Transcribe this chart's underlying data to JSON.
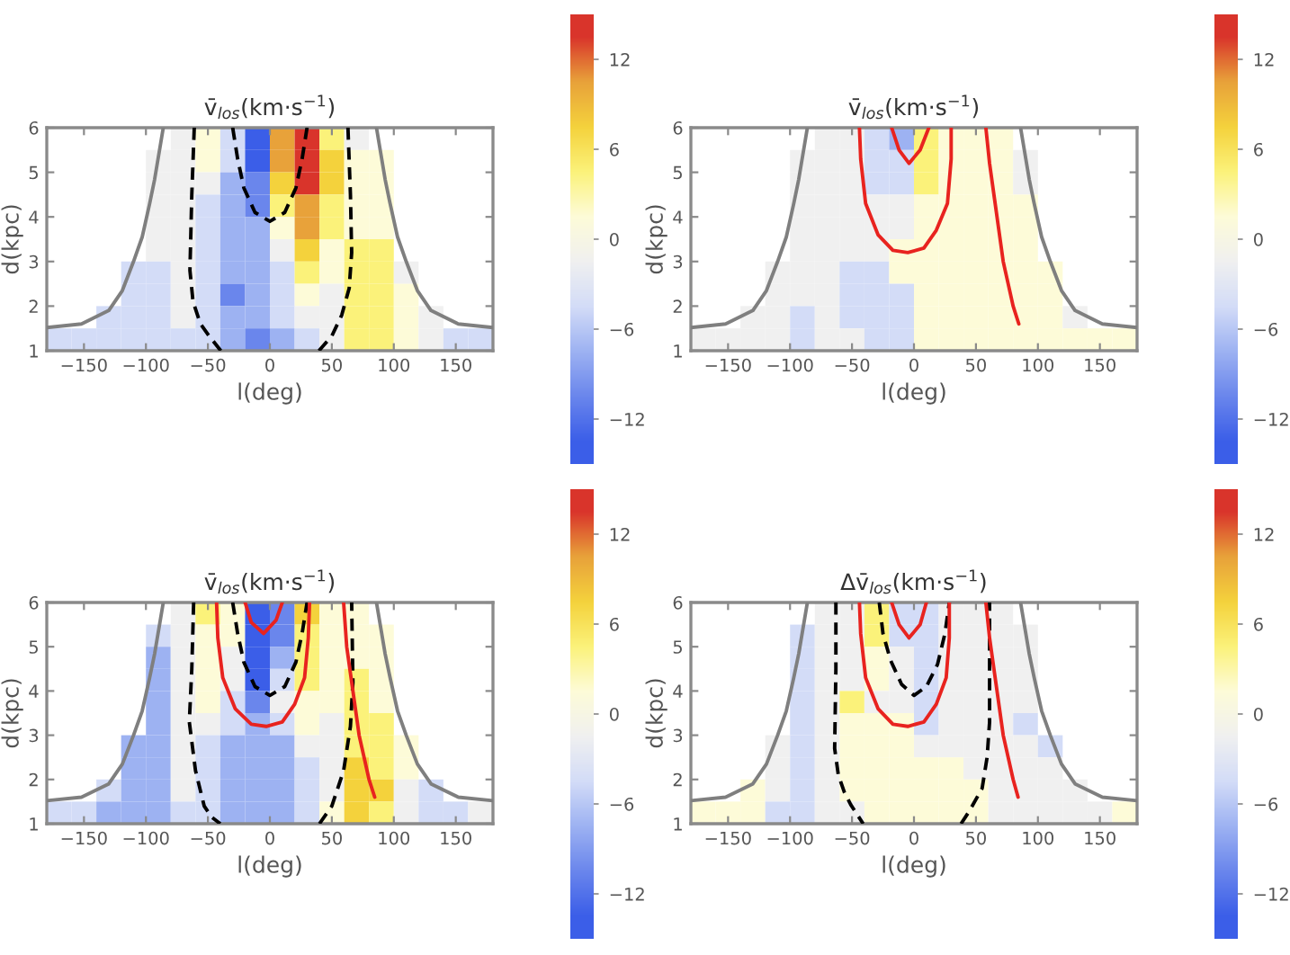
{
  "chart_data": [
    {
      "type": "heatmap",
      "title": "v̄$_{los}$(km·s$^{−1}$)",
      "xlabel": "l(deg)",
      "ylabel": "d(kpc)",
      "xlim": [
        -180,
        180
      ],
      "xticks": [
        {
          "value": -150,
          "label": "−150"
        },
        {
          "value": -100,
          "label": "−100"
        },
        {
          "value": -50,
          "label": "−50"
        },
        0,
        50,
        100,
        150
      ],
      "ylim": [
        1,
        6
      ],
      "yticks": [
        1,
        2,
        3,
        4,
        5,
        6
      ],
      "clim": [
        -15,
        15
      ],
      "cticks": [
        -12,
        -6,
        0,
        6,
        12
      ],
      "colors": [
        "#3b5ee8",
        "#6a86ec",
        "#9db2f2",
        "#d3dcf7",
        "#f0f0f0",
        "#fdfbd8",
        "#fbf27a",
        "#f4d23c",
        "#e8a23a",
        "#d9342b"
      ],
      "cells": [
        [
          null,
          null,
          null,
          null,
          null,
          -1.5,
          1.5,
          -4.5,
          -13.5,
          10.5,
          13.5,
          4.5,
          -1.5,
          null,
          null,
          null,
          null,
          null
        ],
        [
          null,
          null,
          null,
          null,
          -1.5,
          -1.5,
          1.5,
          -4.5,
          -13.5,
          10.5,
          13.5,
          7.5,
          1.5,
          1.5,
          null,
          null,
          null,
          null
        ],
        [
          null,
          null,
          null,
          null,
          -1.5,
          -1.5,
          -1.5,
          -7.5,
          -10.5,
          7.5,
          13.5,
          7.5,
          1.5,
          1.5,
          null,
          null,
          null,
          null
        ],
        [
          null,
          null,
          null,
          null,
          -1.5,
          -1.5,
          -4.5,
          -7.5,
          -10.5,
          4.5,
          10.5,
          4.5,
          1.5,
          1.5,
          null,
          null,
          null,
          null
        ],
        [
          null,
          null,
          null,
          null,
          -1.5,
          -1.5,
          -4.5,
          -7.5,
          -7.5,
          1.5,
          10.5,
          4.5,
          1.5,
          1.5,
          null,
          null,
          null,
          null
        ],
        [
          null,
          null,
          null,
          null,
          -1.5,
          -1.5,
          -4.5,
          -7.5,
          -7.5,
          -1.5,
          7.5,
          1.5,
          4.5,
          4.5,
          null,
          null,
          null,
          null
        ],
        [
          null,
          null,
          null,
          -4.5,
          -4.5,
          -1.5,
          -4.5,
          -7.5,
          -7.5,
          -4.5,
          4.5,
          1.5,
          4.5,
          4.5,
          -1.5,
          null,
          null,
          null
        ],
        [
          null,
          null,
          null,
          -4.5,
          -4.5,
          -1.5,
          -4.5,
          -10.5,
          -7.5,
          -4.5,
          1.5,
          -1.5,
          4.5,
          4.5,
          1.5,
          null,
          null,
          null
        ],
        [
          null,
          null,
          -4.5,
          -4.5,
          -4.5,
          -1.5,
          -4.5,
          -7.5,
          -7.5,
          -4.5,
          -1.5,
          -1.5,
          4.5,
          4.5,
          1.5,
          -1.5,
          null,
          null
        ],
        [
          -4.5,
          -4.5,
          -4.5,
          -4.5,
          -4.5,
          -4.5,
          -4.5,
          -7.5,
          -10.5,
          -7.5,
          -4.5,
          -1.5,
          4.5,
          4.5,
          1.5,
          -1.5,
          -4.5,
          -4.5
        ]
      ],
      "series": [
        {
          "type": "line",
          "color": "#7f7f7f",
          "line_style": "solid",
          "x": [
            -180,
            -152,
            -130,
            -119,
            -110,
            -103,
            -97,
            -93,
            -86
          ],
          "values": [
            1.52,
            1.6,
            1.9,
            2.35,
            3.0,
            3.55,
            4.3,
            4.84,
            6.0
          ]
        },
        {
          "type": "line",
          "color": "#7f7f7f",
          "line_style": "solid",
          "x": [
            86,
            93,
            97,
            103,
            110,
            119,
            130,
            152,
            180
          ],
          "values": [
            6.0,
            4.84,
            4.3,
            3.55,
            3.0,
            2.35,
            1.9,
            1.6,
            1.52
          ]
        },
        {
          "type": "line",
          "color": "#000000",
          "line_style": "dashed",
          "x": [
            -61,
            -63,
            -64.5,
            -62,
            -56,
            -49,
            -39.6
          ],
          "values": [
            6.0,
            4.5,
            2.8,
            2.1,
            1.6,
            1.33,
            1.0
          ]
        },
        {
          "type": "line",
          "color": "#000000",
          "line_style": "dashed",
          "x": [
            39.6,
            50,
            58,
            64,
            66,
            65,
            63
          ],
          "values": [
            1.0,
            1.33,
            1.8,
            2.4,
            3.2,
            4.5,
            6.0
          ]
        },
        {
          "type": "line",
          "color": "#000000",
          "line_style": "dashed",
          "x": [
            -30,
            -26,
            -21,
            -12,
            0,
            12,
            21,
            26,
            30
          ],
          "values": [
            6.0,
            5.3,
            4.65,
            4.1,
            3.9,
            4.1,
            4.65,
            5.3,
            6.0
          ]
        }
      ]
    },
    {
      "type": "heatmap",
      "title": "v̄$_{los}$(km·s$^{−1}$)",
      "xlabel": "l(deg)",
      "ylabel": "d(kpc)",
      "xlim": [
        -180,
        180
      ],
      "xticks": [
        {
          "value": -150,
          "label": "−150"
        },
        {
          "value": -100,
          "label": "−100"
        },
        {
          "value": -50,
          "label": "−50"
        },
        0,
        50,
        100,
        150
      ],
      "ylim": [
        1,
        6
      ],
      "yticks": [
        1,
        2,
        3,
        4,
        5,
        6
      ],
      "clim": [
        -15,
        15
      ],
      "cticks": [
        -12,
        -6,
        0,
        6,
        12
      ],
      "colors": [
        "#3b5ee8",
        "#6a86ec",
        "#9db2f2",
        "#d3dcf7",
        "#f0f0f0",
        "#fdfbd8",
        "#fbf27a",
        "#f4d23c",
        "#e8a23a",
        "#d9342b"
      ],
      "cells": [
        [
          null,
          null,
          null,
          null,
          null,
          -1.5,
          -1.5,
          -4.5,
          -7.5,
          4.5,
          1.5,
          1.5,
          1.5,
          null,
          null,
          null,
          null,
          null
        ],
        [
          null,
          null,
          null,
          null,
          -1.5,
          -1.5,
          -1.5,
          -4.5,
          -4.5,
          4.5,
          1.5,
          1.5,
          1.5,
          -1.5,
          null,
          null,
          null,
          null
        ],
        [
          null,
          null,
          null,
          null,
          -1.5,
          -1.5,
          -1.5,
          -4.5,
          -4.5,
          4.5,
          1.5,
          1.5,
          1.5,
          -1.5,
          null,
          null,
          null,
          null
        ],
        [
          null,
          null,
          null,
          null,
          -1.5,
          -1.5,
          -1.5,
          -1.5,
          -1.5,
          1.5,
          1.5,
          1.5,
          1.5,
          1.5,
          null,
          null,
          null,
          null
        ],
        [
          null,
          null,
          null,
          null,
          -1.5,
          -1.5,
          -1.5,
          -1.5,
          -1.5,
          1.5,
          1.5,
          1.5,
          1.5,
          1.5,
          null,
          null,
          null,
          null
        ],
        [
          null,
          null,
          null,
          null,
          -1.5,
          -1.5,
          -1.5,
          -1.5,
          1.5,
          1.5,
          1.5,
          1.5,
          1.5,
          1.5,
          null,
          null,
          null,
          null
        ],
        [
          null,
          null,
          null,
          -1.5,
          -1.5,
          -1.5,
          -4.5,
          -4.5,
          1.5,
          1.5,
          1.5,
          1.5,
          1.5,
          1.5,
          1.5,
          null,
          null,
          null
        ],
        [
          null,
          null,
          null,
          -1.5,
          -1.5,
          -1.5,
          -4.5,
          -4.5,
          -4.5,
          1.5,
          1.5,
          1.5,
          1.5,
          1.5,
          1.5,
          null,
          null,
          null
        ],
        [
          null,
          null,
          -1.5,
          -1.5,
          -4.5,
          -1.5,
          -4.5,
          -4.5,
          -4.5,
          1.5,
          1.5,
          1.5,
          1.5,
          1.5,
          1.5,
          -1.5,
          null,
          null
        ],
        [
          -1.5,
          -1.5,
          -1.5,
          -1.5,
          -4.5,
          -1.5,
          -1.5,
          -4.5,
          -4.5,
          1.5,
          1.5,
          1.5,
          1.5,
          1.5,
          1.5,
          1.5,
          1.5,
          1.5
        ]
      ],
      "series": [
        {
          "type": "line",
          "color": "#7f7f7f",
          "line_style": "solid",
          "x": [
            -180,
            -152,
            -130,
            -119,
            -110,
            -103,
            -97,
            -93,
            -86
          ],
          "values": [
            1.52,
            1.6,
            1.9,
            2.35,
            3.0,
            3.55,
            4.3,
            4.84,
            6.0
          ]
        },
        {
          "type": "line",
          "color": "#7f7f7f",
          "line_style": "solid",
          "x": [
            86,
            93,
            97,
            103,
            110,
            119,
            130,
            152,
            180
          ],
          "values": [
            6.0,
            4.84,
            4.3,
            3.55,
            3.0,
            2.35,
            1.9,
            1.6,
            1.52
          ]
        },
        {
          "type": "line",
          "color": "#e8231f",
          "line_style": "solid",
          "x": [
            -44,
            -43,
            -39,
            -29,
            -17,
            -5,
            8,
            18,
            27,
            30,
            30
          ],
          "values": [
            6.0,
            5.3,
            4.3,
            3.6,
            3.25,
            3.2,
            3.3,
            3.7,
            4.3,
            5.3,
            6.0
          ]
        },
        {
          "type": "line",
          "color": "#e8231f",
          "line_style": "solid",
          "x": [
            -18,
            -12,
            -4,
            5,
            12
          ],
          "values": [
            6.0,
            5.5,
            5.2,
            5.5,
            6.0
          ]
        },
        {
          "type": "line",
          "color": "#e8231f",
          "line_style": "solid",
          "x": [
            58,
            61,
            65,
            72,
            80,
            84.6
          ],
          "values": [
            6.0,
            5.2,
            4.4,
            3.0,
            2.0,
            1.6
          ]
        }
      ]
    },
    {
      "type": "heatmap",
      "title": "v̄$_{los}$(km·s$^{−1}$)",
      "xlabel": "l(deg)",
      "ylabel": "d(kpc)",
      "xlim": [
        -180,
        180
      ],
      "xticks": [
        {
          "value": -150,
          "label": "−150"
        },
        {
          "value": -100,
          "label": "−100"
        },
        {
          "value": -50,
          "label": "−50"
        },
        0,
        50,
        100,
        150
      ],
      "ylim": [
        1,
        6
      ],
      "yticks": [
        1,
        2,
        3,
        4,
        5,
        6
      ],
      "clim": [
        -15,
        15
      ],
      "cticks": [
        -12,
        -6,
        0,
        6,
        12
      ],
      "colors": [
        "#3b5ee8",
        "#6a86ec",
        "#9db2f2",
        "#d3dcf7",
        "#f0f0f0",
        "#fdfbd8",
        "#fbf27a",
        "#f4d23c",
        "#e8a23a",
        "#d9342b"
      ],
      "cells": [
        [
          null,
          null,
          null,
          null,
          null,
          -1.5,
          4.5,
          1.5,
          -13.5,
          -10.5,
          7.5,
          1.5,
          1.5,
          null,
          null,
          null,
          null,
          null
        ],
        [
          null,
          null,
          null,
          null,
          -4.5,
          -1.5,
          1.5,
          1.5,
          -13.5,
          -10.5,
          4.5,
          1.5,
          1.5,
          1.5,
          null,
          null,
          null,
          null
        ],
        [
          null,
          null,
          null,
          null,
          -7.5,
          -1.5,
          1.5,
          -1.5,
          -13.5,
          -7.5,
          4.5,
          1.5,
          1.5,
          1.5,
          null,
          null,
          null,
          null
        ],
        [
          null,
          null,
          null,
          null,
          -7.5,
          -1.5,
          1.5,
          -1.5,
          -13.5,
          -4.5,
          4.5,
          1.5,
          4.5,
          1.5,
          null,
          null,
          null,
          null
        ],
        [
          null,
          null,
          null,
          null,
          -7.5,
          -1.5,
          1.5,
          -4.5,
          -10.5,
          -1.5,
          1.5,
          1.5,
          4.5,
          1.5,
          null,
          null,
          null,
          null
        ],
        [
          null,
          null,
          null,
          null,
          -7.5,
          -1.5,
          -1.5,
          -4.5,
          -7.5,
          -4.5,
          1.5,
          -1.5,
          4.5,
          4.5,
          null,
          null,
          null,
          null
        ],
        [
          null,
          null,
          null,
          -7.5,
          -7.5,
          -1.5,
          -4.5,
          -7.5,
          -7.5,
          -7.5,
          -1.5,
          -1.5,
          4.5,
          4.5,
          1.5,
          null,
          null,
          null
        ],
        [
          null,
          null,
          null,
          -7.5,
          -7.5,
          -1.5,
          -4.5,
          -7.5,
          -7.5,
          -7.5,
          -4.5,
          -1.5,
          7.5,
          4.5,
          1.5,
          null,
          null,
          null
        ],
        [
          null,
          null,
          -4.5,
          -7.5,
          -7.5,
          -1.5,
          -4.5,
          -7.5,
          -7.5,
          -7.5,
          -4.5,
          -1.5,
          7.5,
          7.5,
          -1.5,
          -4.5,
          null,
          null
        ],
        [
          -4.5,
          -4.5,
          -7.5,
          -7.5,
          -7.5,
          -4.5,
          -4.5,
          -7.5,
          -7.5,
          -7.5,
          -4.5,
          1.5,
          7.5,
          4.5,
          -1.5,
          -4.5,
          -4.5,
          -1.5
        ]
      ],
      "series": [
        {
          "type": "line",
          "color": "#7f7f7f",
          "line_style": "solid",
          "x": [
            -180,
            -152,
            -130,
            -119,
            -110,
            -103,
            -97,
            -93,
            -86
          ],
          "values": [
            1.52,
            1.6,
            1.9,
            2.35,
            3.0,
            3.55,
            4.3,
            4.84,
            6.0
          ]
        },
        {
          "type": "line",
          "color": "#7f7f7f",
          "line_style": "solid",
          "x": [
            86,
            93,
            97,
            103,
            110,
            119,
            130,
            152,
            180
          ],
          "values": [
            6.0,
            4.84,
            4.3,
            3.55,
            3.0,
            2.35,
            1.9,
            1.6,
            1.52
          ]
        },
        {
          "type": "line",
          "color": "#000000",
          "line_style": "dashed",
          "x": [
            -61.5,
            -63,
            -65,
            -60,
            -53,
            -47,
            -40
          ],
          "values": [
            6.0,
            4.5,
            3.3,
            2.2,
            1.4,
            1.15,
            1.0
          ]
        },
        {
          "type": "line",
          "color": "#000000",
          "line_style": "dashed",
          "x": [
            40,
            50,
            59.5,
            65,
            67,
            66
          ],
          "values": [
            1.0,
            1.4,
            2.2,
            3.2,
            4.2,
            6.0
          ]
        },
        {
          "type": "line",
          "color": "#000000",
          "line_style": "dashed",
          "x": [
            -30,
            -26,
            -21,
            -12,
            0,
            12,
            21,
            26,
            30
          ],
          "values": [
            6.0,
            5.3,
            4.65,
            4.1,
            3.9,
            4.1,
            4.65,
            5.3,
            6.0
          ]
        },
        {
          "type": "line",
          "color": "#e8231f",
          "line_style": "solid",
          "x": [
            -43,
            -42,
            -38,
            -28,
            -15,
            -3,
            10,
            20,
            28,
            31,
            32
          ],
          "values": [
            6.0,
            5.2,
            4.3,
            3.6,
            3.25,
            3.2,
            3.3,
            3.7,
            4.3,
            5.2,
            6.0
          ]
        },
        {
          "type": "line",
          "color": "#e8231f",
          "line_style": "solid",
          "x": [
            -20,
            -15,
            -5,
            5,
            10
          ],
          "values": [
            6.0,
            5.55,
            5.3,
            5.6,
            6.0
          ]
        },
        {
          "type": "line",
          "color": "#e8231f",
          "line_style": "solid",
          "x": [
            59.5,
            62,
            65,
            72,
            80,
            84.6
          ],
          "values": [
            6.0,
            5.0,
            4.4,
            3.0,
            2.0,
            1.6
          ]
        }
      ]
    },
    {
      "type": "heatmap",
      "title": "Δv̄$_{los}$(km·s$^{−1}$)",
      "xlabel": "l(deg)",
      "ylabel": "d(kpc)",
      "xlim": [
        -180,
        180
      ],
      "xticks": [
        {
          "value": -150,
          "label": "−150"
        },
        {
          "value": -100,
          "label": "−100"
        },
        {
          "value": -50,
          "label": "−50"
        },
        0,
        50,
        100,
        150
      ],
      "ylim": [
        1,
        6
      ],
      "yticks": [
        1,
        2,
        3,
        4,
        5,
        6
      ],
      "clim": [
        -15,
        15
      ],
      "cticks": [
        -12,
        -6,
        0,
        6,
        12
      ],
      "colors": [
        "#3b5ee8",
        "#6a86ec",
        "#9db2f2",
        "#d3dcf7",
        "#f0f0f0",
        "#fdfbd8",
        "#fbf27a",
        "#f4d23c",
        "#e8a23a",
        "#d9342b"
      ],
      "cells": [
        [
          null,
          null,
          null,
          null,
          null,
          -1.5,
          -1.5,
          4.5,
          -4.5,
          -4.5,
          -1.5,
          -1.5,
          -1.5,
          null,
          null,
          null,
          null,
          null
        ],
        [
          null,
          null,
          null,
          null,
          -4.5,
          -1.5,
          -1.5,
          4.5,
          -4.5,
          -4.5,
          -1.5,
          -1.5,
          -1.5,
          -1.5,
          null,
          null,
          null,
          null
        ],
        [
          null,
          null,
          null,
          null,
          -4.5,
          -1.5,
          -1.5,
          1.5,
          -1.5,
          -4.5,
          -1.5,
          -1.5,
          -1.5,
          -1.5,
          null,
          null,
          null,
          null
        ],
        [
          null,
          null,
          null,
          null,
          -4.5,
          -1.5,
          -1.5,
          1.5,
          -1.5,
          -4.5,
          -1.5,
          -1.5,
          -1.5,
          -1.5,
          null,
          null,
          null,
          null
        ],
        [
          null,
          null,
          null,
          null,
          -4.5,
          -1.5,
          4.5,
          -1.5,
          -1.5,
          -4.5,
          -1.5,
          -1.5,
          -1.5,
          -1.5,
          null,
          null,
          null,
          null
        ],
        [
          null,
          null,
          null,
          null,
          -4.5,
          -1.5,
          1.5,
          1.5,
          1.5,
          -4.5,
          -1.5,
          -1.5,
          -1.5,
          -4.5,
          null,
          null,
          null,
          null
        ],
        [
          null,
          null,
          null,
          -1.5,
          -4.5,
          -1.5,
          1.5,
          1.5,
          1.5,
          -1.5,
          -1.5,
          -1.5,
          -1.5,
          -1.5,
          -4.5,
          null,
          null,
          null
        ],
        [
          null,
          null,
          null,
          -1.5,
          -4.5,
          -1.5,
          1.5,
          1.5,
          1.5,
          1.5,
          1.5,
          -1.5,
          -1.5,
          -1.5,
          -1.5,
          null,
          null,
          null
        ],
        [
          null,
          null,
          1.5,
          -1.5,
          -4.5,
          -1.5,
          1.5,
          1.5,
          1.5,
          1.5,
          1.5,
          1.5,
          -1.5,
          -1.5,
          -1.5,
          -1.5,
          null,
          null
        ],
        [
          1.5,
          1.5,
          1.5,
          -4.5,
          -4.5,
          -1.5,
          -1.5,
          1.5,
          1.5,
          1.5,
          1.5,
          1.5,
          -1.5,
          -1.5,
          -1.5,
          -1.5,
          -1.5,
          1.5
        ]
      ],
      "series": [
        {
          "type": "line",
          "color": "#7f7f7f",
          "line_style": "solid",
          "x": [
            -180,
            -152,
            -130,
            -119,
            -110,
            -103,
            -97,
            -93,
            -86
          ],
          "values": [
            1.52,
            1.6,
            1.9,
            2.35,
            3.0,
            3.55,
            4.3,
            4.84,
            6.0
          ]
        },
        {
          "type": "line",
          "color": "#7f7f7f",
          "line_style": "solid",
          "x": [
            86,
            93,
            97,
            103,
            110,
            119,
            130,
            152,
            180
          ],
          "values": [
            6.0,
            4.84,
            4.3,
            3.55,
            3.0,
            2.35,
            1.9,
            1.6,
            1.52
          ]
        },
        {
          "type": "line",
          "color": "#000000",
          "line_style": "dashed",
          "x": [
            -63,
            -63,
            -64,
            -61,
            -56,
            -51,
            -41
          ],
          "values": [
            6.0,
            4.5,
            2.7,
            2.1,
            1.7,
            1.43,
            1.0
          ]
        },
        {
          "type": "line",
          "color": "#000000",
          "line_style": "dashed",
          "x": [
            38,
            45,
            55,
            59,
            61,
            61
          ],
          "values": [
            1.0,
            1.3,
            1.8,
            2.5,
            3.3,
            6.0
          ]
        },
        {
          "type": "line",
          "color": "#000000",
          "line_style": "dashed",
          "x": [
            -28,
            -25,
            -19,
            -10,
            0,
            10,
            19,
            25,
            28.5
          ],
          "values": [
            6.0,
            5.3,
            4.7,
            4.15,
            3.9,
            4.1,
            4.6,
            5.3,
            6.0
          ]
        },
        {
          "type": "line",
          "color": "#e8231f",
          "line_style": "solid",
          "x": [
            -44,
            -43,
            -39,
            -29,
            -17,
            -5,
            8,
            18,
            26,
            28.5,
            28.5
          ],
          "values": [
            6.0,
            5.3,
            4.3,
            3.6,
            3.25,
            3.2,
            3.3,
            3.7,
            4.3,
            5.2,
            6.0
          ]
        },
        {
          "type": "line",
          "color": "#e8231f",
          "line_style": "solid",
          "x": [
            -18,
            -12,
            -4,
            5,
            10
          ],
          "values": [
            6.0,
            5.5,
            5.2,
            5.5,
            6.0
          ]
        },
        {
          "type": "line",
          "color": "#e8231f",
          "line_style": "solid",
          "x": [
            58,
            61,
            65,
            72,
            80,
            84
          ],
          "values": [
            6.0,
            5.2,
            4.4,
            3.0,
            2.0,
            1.6
          ]
        }
      ]
    }
  ]
}
